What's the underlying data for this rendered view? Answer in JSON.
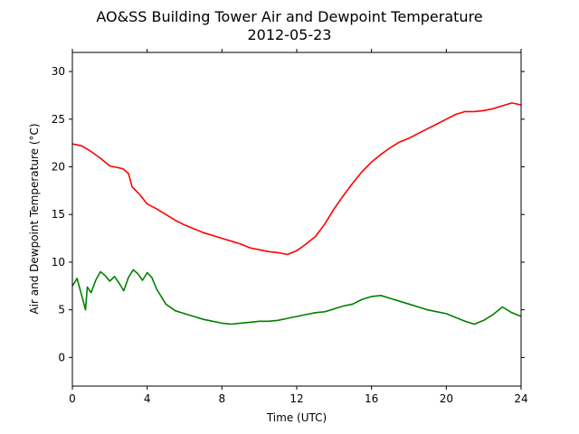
{
  "chart_data": {
    "type": "line",
    "title": "AO&SS Building Tower Air and Dewpoint Temperature",
    "subtitle": "2012-05-23",
    "xlabel": "Time (UTC)",
    "ylabel": "Air and Dewpoint Temperature (°C)",
    "xlim": [
      0,
      24
    ],
    "ylim": [
      -3,
      32
    ],
    "xticks": [
      0,
      4,
      8,
      12,
      16,
      20,
      24
    ],
    "yticks": [
      0,
      5,
      10,
      15,
      20,
      25,
      30
    ],
    "grid": false,
    "series": [
      {
        "color": "#ff0000",
        "x": [
          0,
          0.5,
          1,
          1.5,
          2,
          2.7,
          3.0,
          3.2,
          3.6,
          4.0,
          4.5,
          5.0,
          5.5,
          6.0,
          6.5,
          7.0,
          7.5,
          8.0,
          8.5,
          9.0,
          9.5,
          10.0,
          10.5,
          11.0,
          11.5,
          12.0,
          12.5,
          13.0,
          13.5,
          14.0,
          14.5,
          15.0,
          15.5,
          16.0,
          16.5,
          17.0,
          17.5,
          18.0,
          18.5,
          19.0,
          19.5,
          20.0,
          20.5,
          21.0,
          21.5,
          22.0,
          22.5,
          23.0,
          23.5,
          24.0
        ],
        "y": [
          22.4,
          22.2,
          21.6,
          20.9,
          20.1,
          19.8,
          19.3,
          17.9,
          17.1,
          16.1,
          15.6,
          15.0,
          14.4,
          13.9,
          13.5,
          13.1,
          12.8,
          12.5,
          12.2,
          11.9,
          11.5,
          11.3,
          11.1,
          11.0,
          10.8,
          11.2,
          11.9,
          12.7,
          14.0,
          15.6,
          17.0,
          18.3,
          19.5,
          20.5,
          21.3,
          22.0,
          22.6,
          23.0,
          23.5,
          24.0,
          24.5,
          25.0,
          25.5,
          25.8,
          25.8,
          25.9,
          26.1,
          26.4,
          26.7,
          26.5
        ]
      },
      {
        "color": "#008000",
        "x": [
          0,
          0.25,
          0.5,
          0.7,
          0.8,
          1.0,
          1.25,
          1.5,
          1.75,
          2.0,
          2.25,
          2.5,
          2.75,
          3.0,
          3.25,
          3.5,
          3.75,
          4.0,
          4.25,
          4.5,
          4.75,
          5.0,
          5.5,
          6.0,
          6.5,
          7.0,
          7.5,
          8.0,
          8.5,
          9.0,
          9.5,
          10.0,
          10.5,
          11.0,
          11.5,
          12.0,
          12.5,
          13.0,
          13.5,
          14.0,
          14.5,
          15.0,
          15.5,
          16.0,
          16.5,
          17.0,
          17.5,
          18.0,
          18.5,
          19.0,
          19.5,
          20.0,
          20.5,
          21.0,
          21.5,
          22.0,
          22.5,
          23.0,
          23.5,
          24.0
        ],
        "y": [
          7.5,
          8.3,
          6.5,
          5.0,
          7.4,
          6.8,
          8.1,
          9.0,
          8.6,
          8.0,
          8.5,
          7.8,
          7.0,
          8.4,
          9.2,
          8.8,
          8.1,
          8.9,
          8.4,
          7.2,
          6.4,
          5.6,
          4.9,
          4.6,
          4.3,
          4.0,
          3.8,
          3.6,
          3.5,
          3.6,
          3.7,
          3.8,
          3.8,
          3.9,
          4.1,
          4.3,
          4.5,
          4.7,
          4.8,
          5.1,
          5.4,
          5.6,
          6.1,
          6.4,
          6.5,
          6.2,
          5.9,
          5.6,
          5.3,
          5.0,
          4.8,
          4.6,
          4.2,
          3.8,
          3.5,
          3.9,
          4.5,
          5.3,
          4.7,
          4.3
        ]
      }
    ]
  }
}
